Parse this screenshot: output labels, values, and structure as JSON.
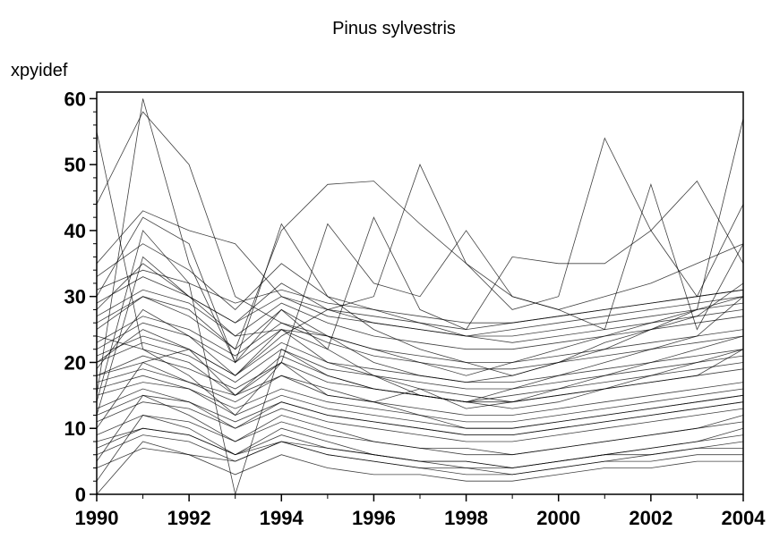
{
  "chart_data": {
    "type": "line",
    "title": "Pinus sylvestris",
    "ylabel": "xpyidef",
    "xlabel": "",
    "xlim": [
      1990,
      2004
    ],
    "ylim": [
      0,
      61
    ],
    "x_ticks": [
      1990,
      1992,
      1994,
      1996,
      1998,
      2000,
      2002,
      2004
    ],
    "y_ticks": [
      0,
      10,
      20,
      30,
      40,
      50,
      60
    ],
    "grid": false,
    "legend": "none",
    "line_color": "#000000",
    "x": [
      1990,
      1991,
      1992,
      1993,
      1994,
      1995,
      1996,
      1997,
      1998,
      1999,
      2000,
      2001,
      2002,
      2003,
      2004
    ],
    "series": [
      {
        "values": [
          55,
          22,
          18,
          12,
          20,
          15,
          14,
          16,
          13,
          14,
          15,
          16,
          17,
          18,
          22
        ]
      },
      {
        "values": [
          44,
          58,
          50,
          30,
          26,
          24,
          20,
          18,
          17,
          18,
          20,
          22,
          25,
          28,
          57
        ]
      },
      {
        "values": [
          15,
          60,
          35,
          20,
          28,
          22,
          18,
          15,
          14,
          16,
          18,
          20,
          22,
          24,
          30
        ]
      },
      {
        "values": [
          30,
          42,
          38,
          20,
          41,
          30,
          25,
          22,
          20,
          18,
          20,
          23,
          25,
          27,
          32
        ]
      },
      {
        "values": [
          25,
          30,
          28,
          22,
          40,
          47,
          47.5,
          41,
          35,
          30,
          28,
          30,
          32,
          35,
          38
        ]
      },
      {
        "values": [
          20,
          25,
          22,
          18,
          24,
          28,
          30,
          50,
          35,
          28,
          30,
          54,
          40,
          30,
          44
        ]
      },
      {
        "values": [
          18,
          20,
          17,
          15,
          20,
          41,
          32,
          30,
          40,
          30,
          28,
          25,
          47,
          25,
          38
        ]
      },
      {
        "values": [
          22,
          26,
          24,
          20,
          25,
          22,
          42,
          28,
          25,
          36,
          35,
          35,
          40,
          47.5,
          35
        ]
      },
      {
        "values": [
          12,
          36,
          30,
          24,
          25,
          24,
          22,
          20,
          18,
          20,
          22,
          24,
          26,
          28,
          30
        ]
      },
      {
        "values": [
          10,
          20,
          22,
          15,
          18,
          16,
          14,
          12,
          10,
          10,
          11,
          12,
          13,
          14,
          15
        ]
      },
      {
        "values": [
          5,
          15,
          12,
          8,
          12,
          10,
          8,
          7,
          6,
          6,
          7,
          8,
          9,
          10,
          12
        ]
      },
      {
        "values": [
          0,
          8,
          6,
          5,
          8,
          6,
          5,
          4,
          3,
          3,
          4,
          5,
          6,
          7,
          8
        ]
      },
      {
        "values": [
          2,
          12,
          10,
          6,
          10,
          8,
          6,
          5,
          4,
          4,
          5,
          6,
          7,
          8,
          10
        ]
      },
      {
        "values": [
          28,
          35,
          30,
          26,
          32,
          28,
          27,
          26,
          25,
          26,
          27,
          28,
          29,
          30,
          31
        ]
      },
      {
        "values": [
          16,
          18,
          16,
          12,
          15,
          13,
          12,
          11,
          10,
          10,
          11,
          12,
          13,
          14,
          15
        ]
      },
      {
        "values": [
          19,
          28,
          24,
          18,
          25,
          20,
          18,
          16,
          15,
          14,
          16,
          18,
          20,
          22,
          24
        ]
      },
      {
        "values": [
          14,
          40,
          32,
          0,
          22,
          18,
          16,
          15,
          14,
          13,
          14,
          16,
          18,
          20,
          22
        ]
      },
      {
        "values": [
          35,
          43,
          40,
          38,
          30,
          28,
          26,
          25,
          24,
          23,
          24,
          25,
          26,
          27,
          28
        ]
      },
      {
        "values": [
          8,
          10,
          9,
          6,
          8,
          7,
          6,
          5,
          5,
          4,
          5,
          6,
          6,
          7,
          7
        ]
      },
      {
        "values": [
          24,
          22,
          20,
          15,
          21,
          18,
          16,
          15,
          14,
          15,
          16,
          17,
          18,
          19,
          20
        ]
      },
      {
        "values": [
          33,
          38,
          34,
          28,
          35,
          30,
          28,
          26,
          24,
          25,
          26,
          27,
          28,
          29,
          30
        ]
      },
      {
        "values": [
          13,
          16,
          14,
          10,
          14,
          12,
          11,
          10,
          9,
          9,
          10,
          11,
          12,
          13,
          14
        ]
      },
      {
        "values": [
          21,
          24,
          22,
          18,
          23,
          20,
          19,
          18,
          17,
          17,
          18,
          19,
          20,
          21,
          22
        ]
      },
      {
        "values": [
          17,
          19,
          17,
          14,
          18,
          15,
          14,
          13,
          12,
          12,
          13,
          14,
          15,
          16,
          17
        ]
      },
      {
        "values": [
          26,
          30,
          27,
          22,
          28,
          24,
          22,
          21,
          20,
          20,
          21,
          22,
          23,
          24,
          25
        ]
      },
      {
        "values": [
          9,
          12,
          11,
          8,
          11,
          9,
          8,
          7,
          7,
          6,
          7,
          8,
          9,
          10,
          11
        ]
      },
      {
        "values": [
          11,
          14,
          13,
          10,
          13,
          11,
          10,
          9,
          8,
          8,
          9,
          10,
          11,
          12,
          13
        ]
      },
      {
        "values": [
          31,
          34,
          32,
          29,
          31,
          29,
          28,
          27,
          26,
          26,
          27,
          28,
          29,
          30,
          31
        ]
      },
      {
        "values": [
          6,
          9,
          8,
          5,
          8,
          6,
          5,
          4,
          4,
          3,
          4,
          5,
          5,
          6,
          6
        ]
      },
      {
        "values": [
          23,
          27,
          25,
          21,
          26,
          23,
          21,
          20,
          19,
          19,
          20,
          21,
          22,
          23,
          24
        ]
      },
      {
        "values": [
          15,
          17,
          16,
          13,
          16,
          14,
          13,
          12,
          11,
          11,
          12,
          13,
          14,
          15,
          16
        ]
      },
      {
        "values": [
          4,
          7,
          6,
          3,
          6,
          4,
          3,
          3,
          2,
          2,
          3,
          4,
          4,
          5,
          5
        ]
      },
      {
        "values": [
          27,
          31,
          29,
          24,
          29,
          26,
          24,
          23,
          22,
          22,
          23,
          24,
          25,
          26,
          27
        ]
      },
      {
        "values": [
          20,
          23,
          21,
          17,
          22,
          19,
          18,
          17,
          16,
          16,
          17,
          18,
          19,
          20,
          21
        ]
      },
      {
        "values": [
          12,
          15,
          14,
          11,
          14,
          12,
          11,
          10,
          9,
          9,
          10,
          11,
          12,
          13,
          14
        ]
      },
      {
        "values": [
          29,
          33,
          30,
          26,
          30,
          27,
          26,
          25,
          24,
          24,
          25,
          26,
          27,
          28,
          29
        ]
      },
      {
        "values": [
          7,
          10,
          9,
          6,
          9,
          7,
          6,
          5,
          5,
          4,
          5,
          6,
          7,
          8,
          9
        ]
      },
      {
        "values": [
          18,
          21,
          19,
          16,
          20,
          17,
          16,
          15,
          14,
          14,
          15,
          16,
          17,
          18,
          19
        ]
      }
    ]
  }
}
